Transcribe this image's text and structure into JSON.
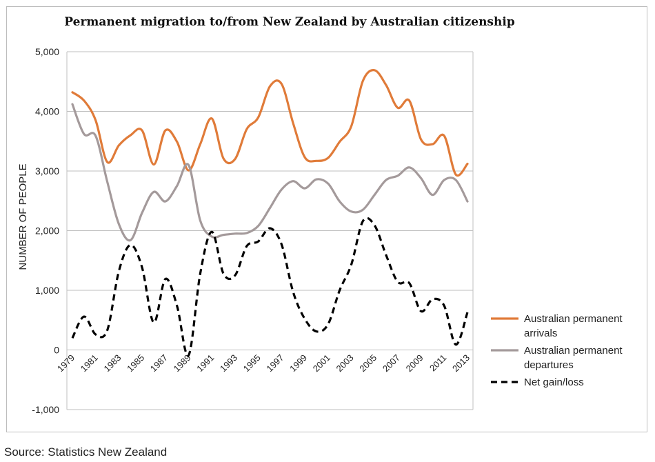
{
  "chart_data": {
    "type": "line",
    "title": "Permanent migration to/from New Zealand by Australian citizenship",
    "ylabel": "NUMBER OF PEOPLE",
    "xlabel": "",
    "ylim": [
      -1000,
      5000
    ],
    "yticks": [
      -1000,
      0,
      1000,
      2000,
      3000,
      4000,
      5000
    ],
    "ytick_labels": [
      "-1,000",
      "0",
      "1,000",
      "2,000",
      "3,000",
      "4,000",
      "5,000"
    ],
    "grid": true,
    "legend_position": "right",
    "x": [
      1979,
      1980,
      1981,
      1982,
      1983,
      1984,
      1985,
      1986,
      1987,
      1988,
      1989,
      1990,
      1991,
      1992,
      1993,
      1994,
      1995,
      1996,
      1997,
      1998,
      1999,
      2000,
      2001,
      2002,
      2003,
      2004,
      2005,
      2006,
      2007,
      2008,
      2009,
      2010,
      2011,
      2012,
      2013
    ],
    "xtick_labels": [
      "1979",
      "1981",
      "1983",
      "1985",
      "1987",
      "1989",
      "1991",
      "1993",
      "1995",
      "1997",
      "1999",
      "2001",
      "2003",
      "2005",
      "2007",
      "2009",
      "2011",
      "2013"
    ],
    "series": [
      {
        "name": "Australian permanent arrivals",
        "name_lines": [
          "Australian permanent",
          "arrivals"
        ],
        "color": "#e07b39",
        "style": "solid",
        "values": [
          4320,
          4180,
          3850,
          3150,
          3430,
          3600,
          3680,
          3110,
          3680,
          3490,
          3010,
          3450,
          3880,
          3210,
          3200,
          3700,
          3900,
          4420,
          4460,
          3800,
          3230,
          3170,
          3220,
          3490,
          3750,
          4510,
          4690,
          4440,
          4060,
          4180,
          3530,
          3450,
          3590,
          2940,
          3120
        ]
      },
      {
        "name": "Australian permanent departures",
        "name_lines": [
          "Australian permanent",
          "departures"
        ],
        "color": "#a49a9b",
        "style": "solid",
        "values": [
          4120,
          3620,
          3590,
          2820,
          2110,
          1840,
          2300,
          2650,
          2490,
          2750,
          3100,
          2170,
          1900,
          1930,
          1950,
          1960,
          2080,
          2380,
          2690,
          2830,
          2710,
          2860,
          2790,
          2490,
          2320,
          2350,
          2600,
          2850,
          2920,
          3060,
          2880,
          2600,
          2850,
          2850,
          2490
        ]
      },
      {
        "name": "Net gain/loss",
        "name_lines": [
          "Net gain/loss"
        ],
        "color": "#000000",
        "style": "dashed",
        "values": [
          200,
          560,
          260,
          330,
          1320,
          1760,
          1380,
          460,
          1190,
          740,
          -90,
          1280,
          1980,
          1280,
          1250,
          1740,
          1820,
          2040,
          1770,
          970,
          520,
          310,
          430,
          1000,
          1430,
          2160,
          2090,
          1590,
          1140,
          1120,
          650,
          850,
          740,
          90,
          630
        ]
      }
    ]
  },
  "footer": {
    "source": "Source: Statistics New Zealand"
  }
}
